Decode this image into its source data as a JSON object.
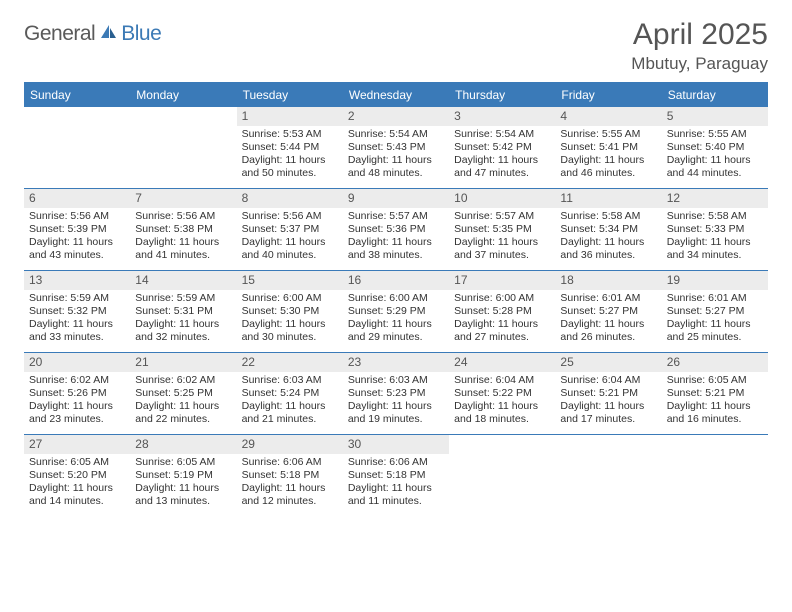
{
  "brand": {
    "general": "General",
    "blue": "Blue"
  },
  "title": "April 2025",
  "location": "Mbutuy, Paraguay",
  "colors": {
    "header_bg": "#3a7ab8",
    "header_text": "#ffffff",
    "daynum_bg": "#ececec",
    "text": "#333333",
    "brand_gray": "#5a5a5a",
    "brand_blue": "#3c7ab5"
  },
  "dow": [
    "Sunday",
    "Monday",
    "Tuesday",
    "Wednesday",
    "Thursday",
    "Friday",
    "Saturday"
  ],
  "grid": {
    "columns": 7,
    "rows": 5,
    "first_weekday_index": 2,
    "days_in_month": 30
  },
  "days": [
    {
      "n": 1,
      "sunrise": "5:53 AM",
      "sunset": "5:44 PM",
      "dl_h": 11,
      "dl_m": 50
    },
    {
      "n": 2,
      "sunrise": "5:54 AM",
      "sunset": "5:43 PM",
      "dl_h": 11,
      "dl_m": 48
    },
    {
      "n": 3,
      "sunrise": "5:54 AM",
      "sunset": "5:42 PM",
      "dl_h": 11,
      "dl_m": 47
    },
    {
      "n": 4,
      "sunrise": "5:55 AM",
      "sunset": "5:41 PM",
      "dl_h": 11,
      "dl_m": 46
    },
    {
      "n": 5,
      "sunrise": "5:55 AM",
      "sunset": "5:40 PM",
      "dl_h": 11,
      "dl_m": 44
    },
    {
      "n": 6,
      "sunrise": "5:56 AM",
      "sunset": "5:39 PM",
      "dl_h": 11,
      "dl_m": 43
    },
    {
      "n": 7,
      "sunrise": "5:56 AM",
      "sunset": "5:38 PM",
      "dl_h": 11,
      "dl_m": 41
    },
    {
      "n": 8,
      "sunrise": "5:56 AM",
      "sunset": "5:37 PM",
      "dl_h": 11,
      "dl_m": 40
    },
    {
      "n": 9,
      "sunrise": "5:57 AM",
      "sunset": "5:36 PM",
      "dl_h": 11,
      "dl_m": 38
    },
    {
      "n": 10,
      "sunrise": "5:57 AM",
      "sunset": "5:35 PM",
      "dl_h": 11,
      "dl_m": 37
    },
    {
      "n": 11,
      "sunrise": "5:58 AM",
      "sunset": "5:34 PM",
      "dl_h": 11,
      "dl_m": 36
    },
    {
      "n": 12,
      "sunrise": "5:58 AM",
      "sunset": "5:33 PM",
      "dl_h": 11,
      "dl_m": 34
    },
    {
      "n": 13,
      "sunrise": "5:59 AM",
      "sunset": "5:32 PM",
      "dl_h": 11,
      "dl_m": 33
    },
    {
      "n": 14,
      "sunrise": "5:59 AM",
      "sunset": "5:31 PM",
      "dl_h": 11,
      "dl_m": 32
    },
    {
      "n": 15,
      "sunrise": "6:00 AM",
      "sunset": "5:30 PM",
      "dl_h": 11,
      "dl_m": 30
    },
    {
      "n": 16,
      "sunrise": "6:00 AM",
      "sunset": "5:29 PM",
      "dl_h": 11,
      "dl_m": 29
    },
    {
      "n": 17,
      "sunrise": "6:00 AM",
      "sunset": "5:28 PM",
      "dl_h": 11,
      "dl_m": 27
    },
    {
      "n": 18,
      "sunrise": "6:01 AM",
      "sunset": "5:27 PM",
      "dl_h": 11,
      "dl_m": 26
    },
    {
      "n": 19,
      "sunrise": "6:01 AM",
      "sunset": "5:27 PM",
      "dl_h": 11,
      "dl_m": 25
    },
    {
      "n": 20,
      "sunrise": "6:02 AM",
      "sunset": "5:26 PM",
      "dl_h": 11,
      "dl_m": 23
    },
    {
      "n": 21,
      "sunrise": "6:02 AM",
      "sunset": "5:25 PM",
      "dl_h": 11,
      "dl_m": 22
    },
    {
      "n": 22,
      "sunrise": "6:03 AM",
      "sunset": "5:24 PM",
      "dl_h": 11,
      "dl_m": 21
    },
    {
      "n": 23,
      "sunrise": "6:03 AM",
      "sunset": "5:23 PM",
      "dl_h": 11,
      "dl_m": 19
    },
    {
      "n": 24,
      "sunrise": "6:04 AM",
      "sunset": "5:22 PM",
      "dl_h": 11,
      "dl_m": 18
    },
    {
      "n": 25,
      "sunrise": "6:04 AM",
      "sunset": "5:21 PM",
      "dl_h": 11,
      "dl_m": 17
    },
    {
      "n": 26,
      "sunrise": "6:05 AM",
      "sunset": "5:21 PM",
      "dl_h": 11,
      "dl_m": 16
    },
    {
      "n": 27,
      "sunrise": "6:05 AM",
      "sunset": "5:20 PM",
      "dl_h": 11,
      "dl_m": 14
    },
    {
      "n": 28,
      "sunrise": "6:05 AM",
      "sunset": "5:19 PM",
      "dl_h": 11,
      "dl_m": 13
    },
    {
      "n": 29,
      "sunrise": "6:06 AM",
      "sunset": "5:18 PM",
      "dl_h": 11,
      "dl_m": 12
    },
    {
      "n": 30,
      "sunrise": "6:06 AM",
      "sunset": "5:18 PM",
      "dl_h": 11,
      "dl_m": 11
    }
  ],
  "labels": {
    "sunrise_prefix": "Sunrise: ",
    "sunset_prefix": "Sunset: ",
    "daylight_prefix": "Daylight: ",
    "hours_word": " hours and ",
    "minutes_word": " minutes."
  }
}
